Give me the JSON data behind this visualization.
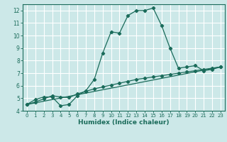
{
  "title": "",
  "xlabel": "Humidex (Indice chaleur)",
  "bg_color": "#cce8e8",
  "grid_color": "#ffffff",
  "line_color": "#1a6b5a",
  "xlim": [
    -0.5,
    23.5
  ],
  "ylim": [
    4,
    12.5
  ],
  "yticks": [
    4,
    5,
    6,
    7,
    8,
    9,
    10,
    11,
    12
  ],
  "xticks": [
    0,
    1,
    2,
    3,
    4,
    5,
    6,
    7,
    8,
    9,
    10,
    11,
    12,
    13,
    14,
    15,
    16,
    17,
    18,
    19,
    20,
    21,
    22,
    23
  ],
  "curve1_x": [
    0,
    1,
    2,
    3,
    4,
    5,
    6,
    7,
    8,
    9,
    10,
    11,
    12,
    13,
    14,
    15,
    16,
    17,
    18,
    19,
    20,
    21,
    22,
    23
  ],
  "curve1_y": [
    4.5,
    4.9,
    5.1,
    5.1,
    4.4,
    4.5,
    5.2,
    5.6,
    6.5,
    8.6,
    10.3,
    10.2,
    11.6,
    12.0,
    12.0,
    12.2,
    10.8,
    9.0,
    7.4,
    7.5,
    7.6,
    7.2,
    7.3,
    7.5
  ],
  "curve2_x": [
    0,
    1,
    2,
    3,
    4,
    5,
    6,
    7,
    8,
    9,
    10,
    11,
    12,
    13,
    14,
    15,
    16,
    17,
    18,
    19,
    20,
    21,
    22,
    23
  ],
  "curve2_y": [
    4.5,
    4.7,
    4.95,
    5.2,
    5.1,
    5.05,
    5.35,
    5.55,
    5.75,
    5.9,
    6.05,
    6.2,
    6.35,
    6.5,
    6.6,
    6.7,
    6.8,
    6.9,
    7.0,
    7.1,
    7.2,
    7.3,
    7.4,
    7.5
  ],
  "curve3_x": [
    0,
    23
  ],
  "curve3_y": [
    4.5,
    7.5
  ]
}
